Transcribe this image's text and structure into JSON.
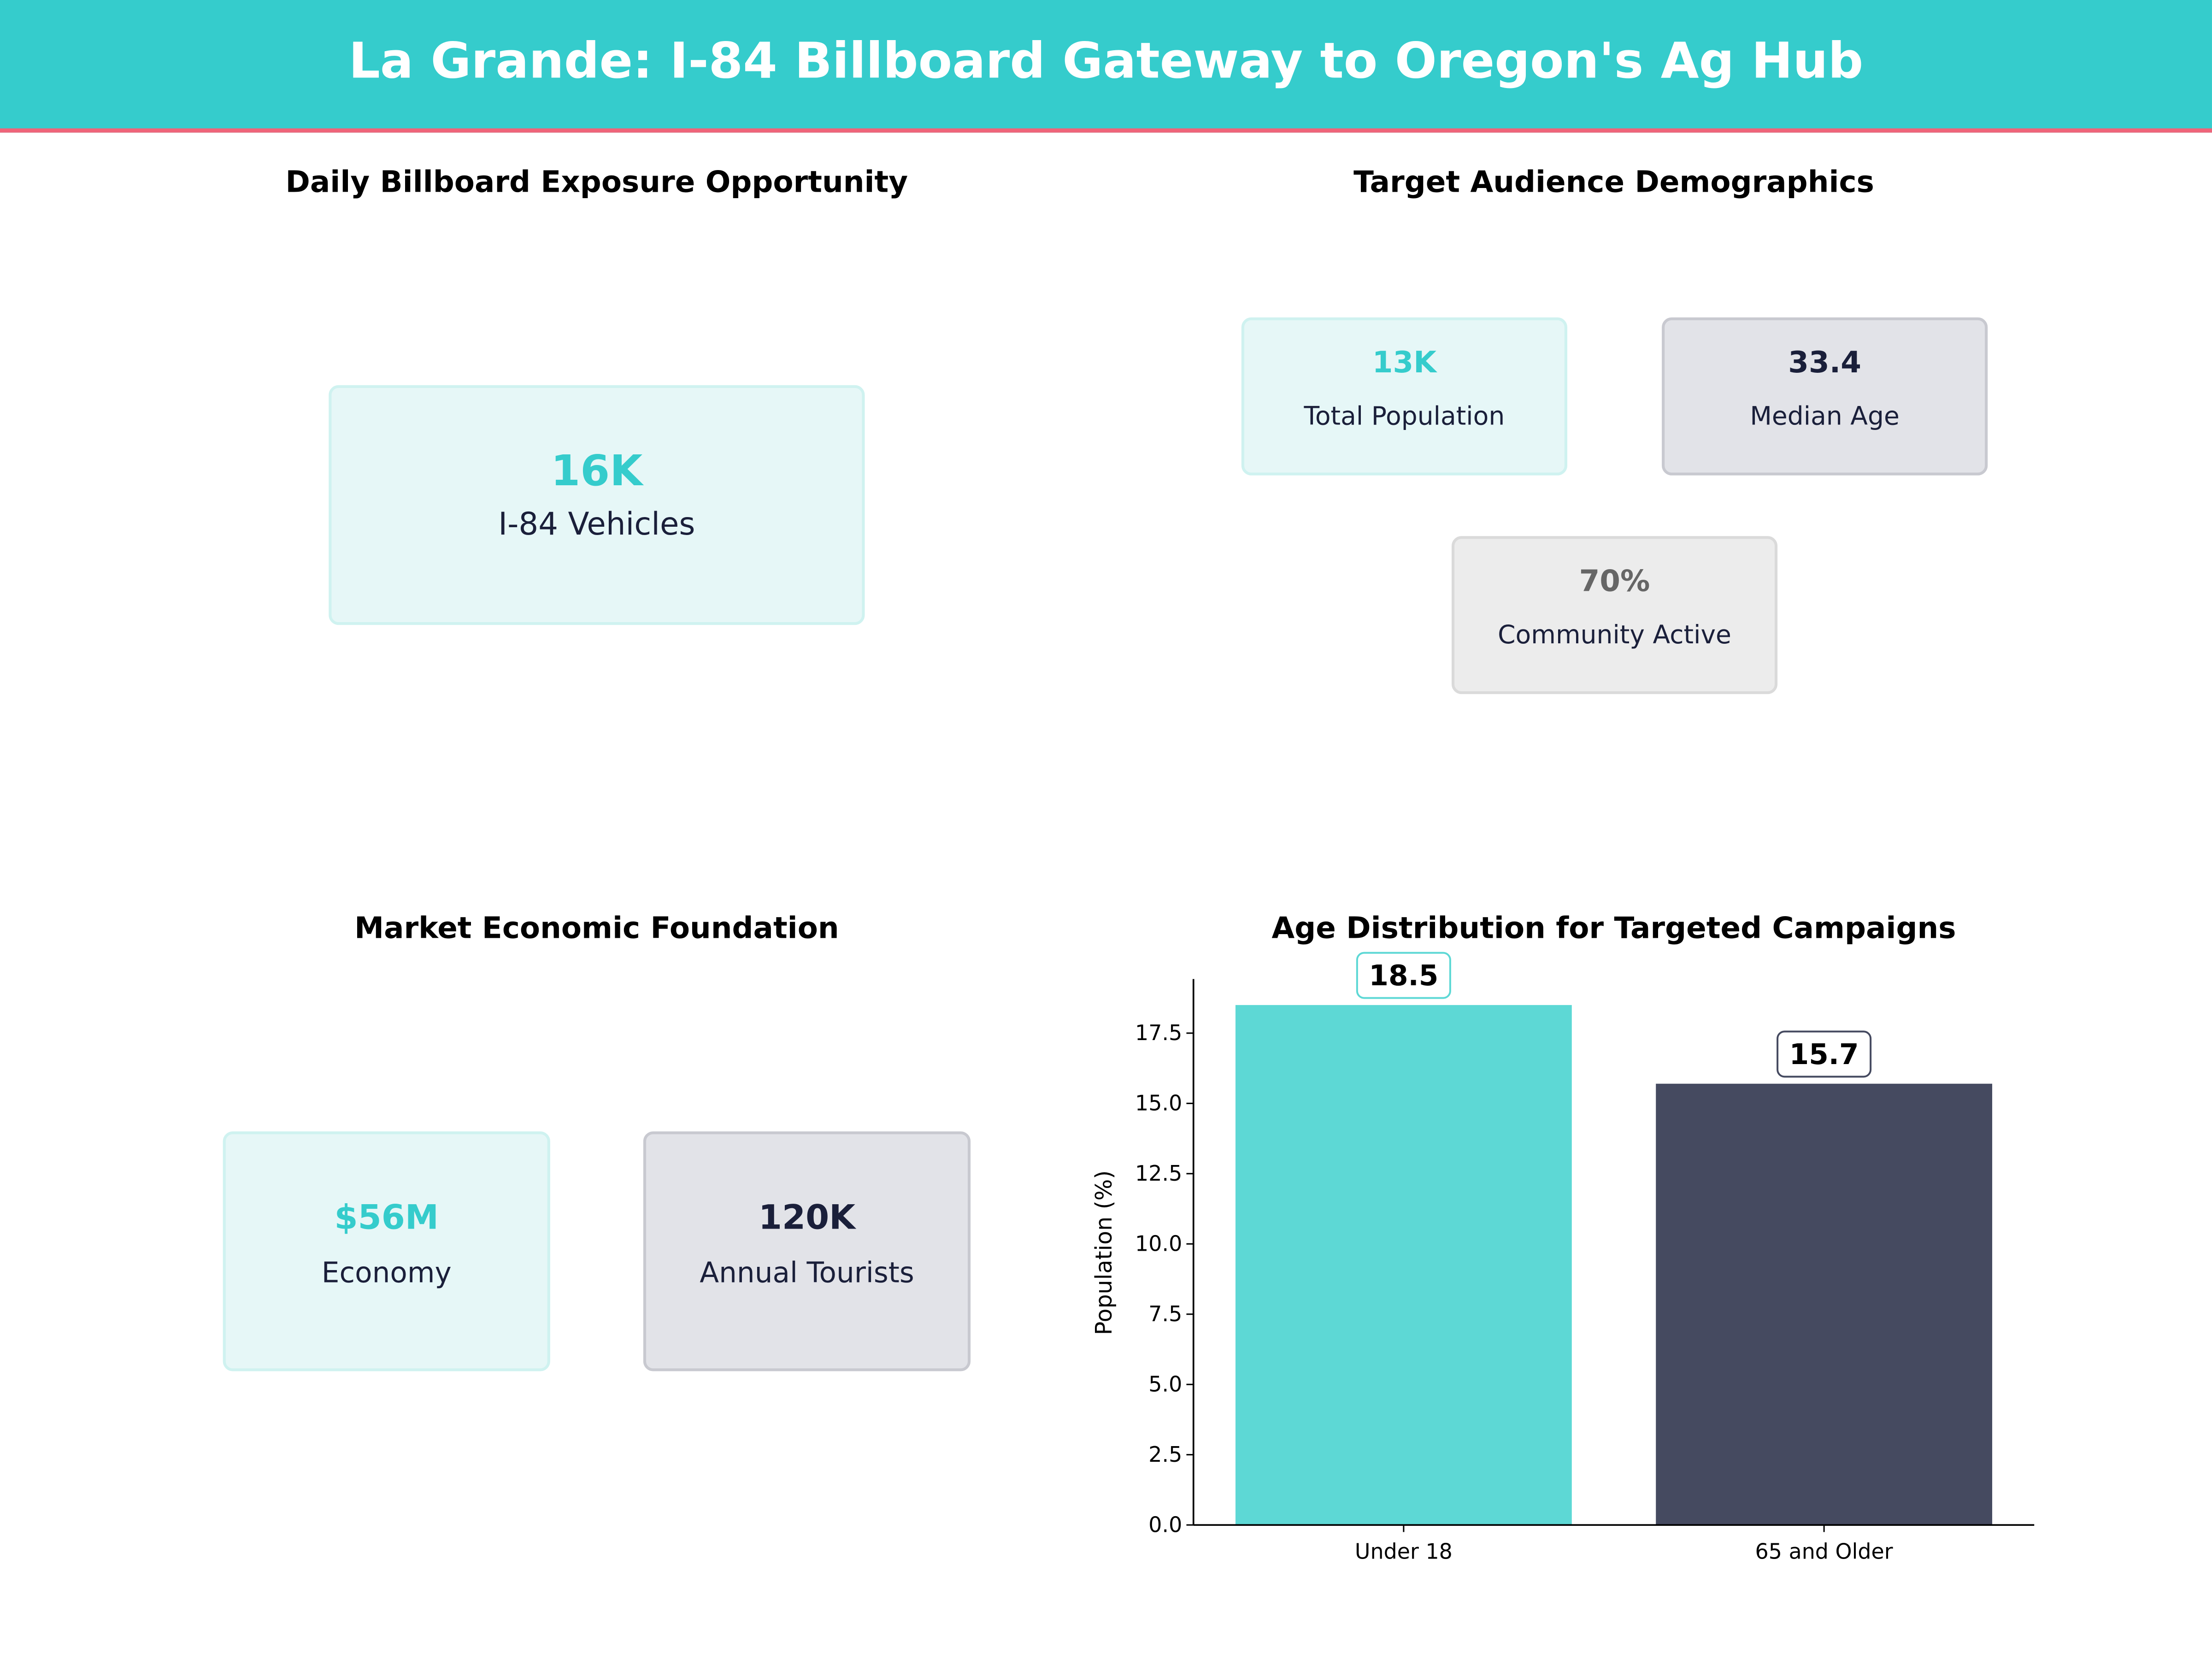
{
  "header": {
    "title": "La Grande: I-84 Billboard Gateway to Oregon's Ag Hub"
  },
  "colors": {
    "teal": "#35CCCC",
    "accent_line": "#EF6479",
    "navy": "#1a1f3a",
    "gray": "#666666",
    "bar_teal": "#5DD8D5",
    "bar_navy": "#454A60"
  },
  "exposure": {
    "title": "Daily Billboard Exposure Opportunity",
    "card": {
      "value": "16K",
      "label": "I-84 Vehicles"
    }
  },
  "demographics": {
    "title": "Target Audience Demographics",
    "cards": [
      {
        "value": "13K",
        "label": "Total Population"
      },
      {
        "value": "33.4",
        "label": "Median Age"
      },
      {
        "value": "70%",
        "label": "Community Active"
      }
    ]
  },
  "economy": {
    "title": "Market Economic Foundation",
    "cards": [
      {
        "value": "$56M",
        "label": "Economy"
      },
      {
        "value": "120K",
        "label": "Annual Tourists"
      }
    ]
  },
  "chart_data": {
    "type": "bar",
    "title": "Age Distribution for Targeted Campaigns",
    "categories": [
      "Under 18",
      "65 and Older"
    ],
    "values": [
      18.5,
      15.7
    ],
    "data_labels": [
      "18.5",
      "15.7"
    ],
    "colors": [
      "#5DD8D5",
      "#454A60"
    ],
    "xlabel": "",
    "ylabel": "Population (%)",
    "ylim": [
      0,
      19.425
    ],
    "yticks": [
      "0.0",
      "2.5",
      "5.0",
      "7.5",
      "10.0",
      "12.5",
      "15.0",
      "17.5"
    ],
    "grid": false
  }
}
